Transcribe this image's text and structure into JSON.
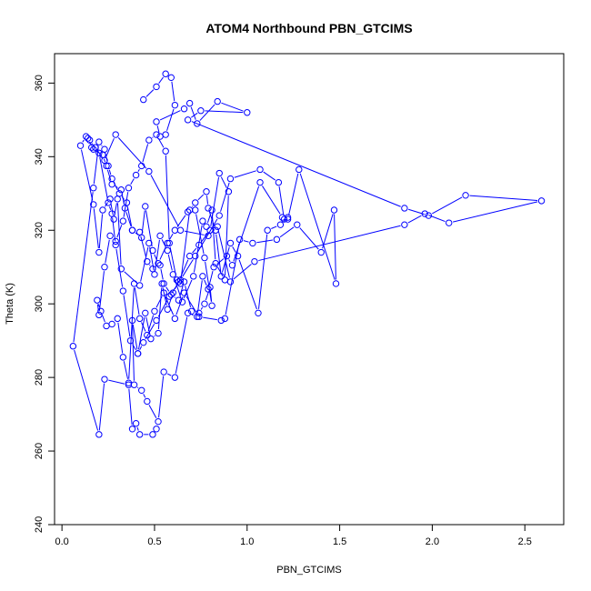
{
  "chart_data": {
    "type": "line",
    "title": "ATOM4 Northbound PBN_GTCIMS",
    "xlabel": "PBN_GTCIMS",
    "ylabel": "Theta (K)",
    "xlim": [
      -0.04,
      2.71
    ],
    "ylim": [
      240,
      368
    ],
    "xticks": [
      0.0,
      0.5,
      1.0,
      1.5,
      2.0,
      2.5
    ],
    "yticks": [
      240,
      260,
      280,
      300,
      320,
      340,
      360
    ],
    "xtick_labels": [
      "0.0",
      "0.5",
      "1.0",
      "1.5",
      "2.0",
      "2.5"
    ],
    "ytick_labels": [
      "240",
      "260",
      "280",
      "300",
      "320",
      "340",
      "360"
    ],
    "grid": false,
    "markers": "open-circle",
    "series": [
      {
        "color": "#0000ff",
        "x": [
          0.44,
          0.51,
          0.56,
          0.59,
          0.61,
          0.56,
          0.53,
          0.51,
          0.66,
          0.69,
          0.73,
          0.84,
          1.0,
          0.75,
          0.68,
          1.85,
          1.98,
          2.18,
          2.59,
          2.09,
          1.96,
          1.85,
          1.04,
          0.91,
          0.84,
          0.79,
          0.64,
          0.47,
          0.29,
          0.23,
          0.18,
          0.15,
          0.13,
          0.1,
          0.17,
          0.2,
          0.22,
          0.26,
          0.28,
          0.3,
          0.32,
          0.42,
          0.47,
          0.5,
          0.53,
          0.57,
          0.6,
          0.65,
          0.71,
          0.76,
          0.78,
          0.81,
          0.83,
          0.88,
          0.9,
          0.85,
          0.8,
          0.74,
          0.69,
          0.63,
          0.6,
          0.57,
          0.54,
          0.52,
          0.48,
          0.45,
          0.41,
          0.38,
          0.39,
          0.43,
          0.46,
          0.52,
          0.55,
          0.61,
          0.68,
          0.73,
          0.76,
          0.79,
          0.82,
          0.89,
          0.92,
          1.07,
          1.19,
          1.22,
          1.28,
          1.48,
          1.47,
          1.4,
          1.27,
          1.16,
          1.03,
          0.96,
          0.88,
          0.86,
          0.74,
          0.66,
          0.61,
          0.55,
          0.5,
          0.46,
          0.42,
          0.39,
          0.36,
          0.33,
          0.3,
          0.27,
          0.24,
          0.21,
          0.19,
          0.2,
          0.23,
          0.26,
          0.29,
          0.33,
          0.36,
          0.4,
          0.43,
          0.47,
          0.51,
          0.56,
          0.58,
          0.62,
          0.64,
          0.69,
          0.72,
          0.78,
          0.79,
          0.83,
          0.86,
          0.91,
          0.95,
          1.06,
          1.11,
          1.18,
          1.22,
          1.2,
          1.17,
          1.07,
          0.91,
          0.85,
          0.72,
          0.64,
          0.58,
          0.51,
          0.44,
          0.41,
          0.37,
          0.33,
          0.29,
          0.27,
          0.25,
          0.2,
          0.16,
          0.14,
          0.17,
          0.22,
          0.24,
          0.27,
          0.32,
          0.34,
          0.38,
          0.42,
          0.46,
          0.49,
          0.53,
          0.55,
          0.59,
          0.63,
          0.66,
          0.7,
          0.74,
          0.77,
          0.8,
          0.81,
          0.77,
          0.72,
          0.68,
          0.61,
          0.57,
          0.52,
          0.49,
          0.45,
          0.43,
          0.38,
          0.35,
          0.31,
          0.27,
          0.25,
          0.23,
          0.2,
          0.17,
          0.06,
          0.2,
          0.23,
          0.36,
          0.38,
          0.4,
          0.42,
          0.49,
          0.51
        ],
        "y": [
          355.5,
          359.0,
          362.5,
          361.5,
          354.0,
          346.0,
          345.5,
          349.5,
          353.0,
          354.5,
          349.0,
          355.0,
          352.0,
          352.5,
          350.0,
          326.0,
          324.0,
          329.5,
          328.0,
          322.0,
          324.5,
          321.5,
          311.5,
          306.0,
          321.0,
          318.5,
          320.0,
          336.0,
          346.0,
          339.0,
          342.5,
          344.5,
          345.5,
          343.0,
          327.0,
          314.0,
          325.5,
          328.5,
          323.0,
          328.5,
          309.5,
          305.0,
          316.5,
          308.0,
          318.5,
          314.5,
          308.0,
          300.5,
          307.5,
          322.5,
          321.0,
          325.5,
          311.0,
          306.5,
          330.5,
          335.5,
          320.0,
          316.0,
          313.0,
          306.0,
          303.0,
          298.5,
          305.5,
          292.0,
          290.5,
          297.5,
          286.5,
          295.5,
          278.0,
          276.5,
          273.5,
          268.0,
          281.5,
          280.0,
          297.5,
          296.5,
          307.5,
          304.0,
          310.0,
          313.0,
          310.5,
          333.0,
          323.5,
          323.0,
          336.5,
          305.5,
          325.5,
          314.0,
          321.5,
          317.5,
          316.5,
          317.5,
          296.0,
          295.5,
          296.5,
          303.0,
          296.0,
          303.0,
          298.0,
          291.5,
          296.0,
          305.5,
          278.5,
          285.5,
          296.0,
          294.5,
          294.0,
          298.0,
          301.0,
          297.0,
          310.0,
          318.5,
          317.0,
          322.5,
          331.5,
          335.0,
          337.5,
          344.5,
          346.0,
          341.5,
          316.5,
          306.5,
          305.5,
          325.5,
          327.5,
          330.5,
          326.0,
          320.0,
          307.5,
          316.5,
          313.0,
          297.5,
          320.0,
          321.5,
          323.5,
          323.0,
          333.0,
          336.5,
          334.0,
          324.0,
          313.0,
          306.5,
          302.0,
          295.5,
          289.5,
          286.5,
          290.0,
          303.5,
          316.0,
          324.5,
          327.5,
          341.0,
          342.5,
          345.0,
          342.0,
          340.5,
          337.5,
          332.5,
          331.0,
          326.0,
          320.0,
          319.5,
          311.5,
          309.5,
          310.5,
          305.5,
          302.5,
          301.0,
          306.0,
          298.0,
          297.5,
          300.0,
          304.5,
          299.5,
          312.5,
          325.5,
          325.0,
          320.0,
          316.5,
          311.0,
          314.5,
          326.5,
          318.0,
          320.0,
          327.5,
          330.0,
          334.0,
          337.5,
          342.0,
          344.0,
          331.5,
          288.5,
          264.5,
          279.5,
          278.0,
          266.0,
          267.5,
          264.5,
          264.5,
          266.0
        ]
      }
    ]
  }
}
